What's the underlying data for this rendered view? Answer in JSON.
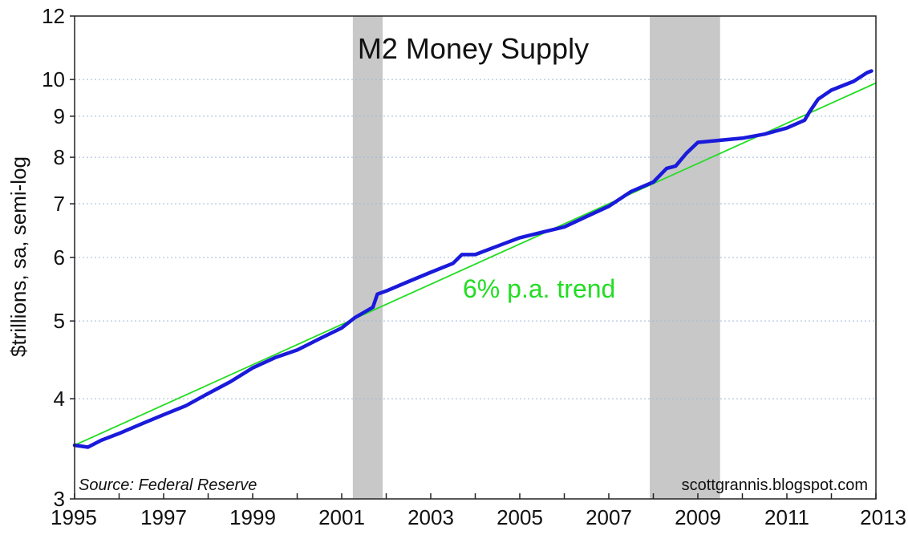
{
  "chart_data": {
    "type": "line",
    "title": "M2 Money Supply",
    "ylabel": "$trillions, sa, semi-log",
    "y_scale": "log",
    "ylim": [
      3,
      12
    ],
    "xlim": [
      1995,
      2013
    ],
    "y_ticks": [
      3,
      4,
      5,
      6,
      7,
      8,
      9,
      10,
      12
    ],
    "y_tick_labels": [
      "3",
      "4",
      "5",
      "6",
      "7",
      "8",
      "9",
      "10",
      "12"
    ],
    "x_ticks": [
      1995,
      1997,
      1999,
      2001,
      2003,
      2005,
      2007,
      2009,
      2011,
      2013
    ],
    "x_tick_labels": [
      "1995",
      "1997",
      "1999",
      "2001",
      "2003",
      "2005",
      "2007",
      "2009",
      "2011",
      "2013"
    ],
    "grid": "horizontal, dotted",
    "recessions": [
      {
        "start": 2001.25,
        "end": 2001.92
      },
      {
        "start": 2007.92,
        "end": 2009.5
      }
    ],
    "series": [
      {
        "color": "#1a1adb",
        "x": [
          1995.0,
          1995.3,
          1995.6,
          1996.0,
          1996.5,
          1997.0,
          1997.5,
          1998.0,
          1998.5,
          1999.0,
          1999.5,
          2000.0,
          2000.5,
          2001.0,
          2001.3,
          2001.7,
          2001.8,
          2002.0,
          2002.5,
          2003.0,
          2003.5,
          2003.7,
          2004.0,
          2004.5,
          2005.0,
          2005.5,
          2006.0,
          2006.5,
          2007.0,
          2007.5,
          2008.0,
          2008.3,
          2008.5,
          2008.75,
          2009.0,
          2009.5,
          2010.0,
          2010.5,
          2011.0,
          2011.4,
          2011.5,
          2011.7,
          2012.0,
          2012.5,
          2012.8,
          2012.9
        ],
        "y": [
          3.5,
          3.48,
          3.55,
          3.62,
          3.72,
          3.82,
          3.92,
          4.06,
          4.2,
          4.37,
          4.5,
          4.6,
          4.75,
          4.9,
          5.05,
          5.2,
          5.4,
          5.45,
          5.6,
          5.75,
          5.9,
          6.05,
          6.05,
          6.2,
          6.35,
          6.45,
          6.55,
          6.75,
          6.95,
          7.25,
          7.45,
          7.75,
          7.8,
          8.1,
          8.35,
          8.4,
          8.45,
          8.55,
          8.7,
          8.9,
          9.1,
          9.45,
          9.7,
          9.95,
          10.2,
          10.25
        ]
      },
      {
        "name": "6% p.a. trend",
        "color": "#22dd22",
        "x": [
          1995.0,
          2013.0
        ],
        "y": [
          3.5,
          9.9
        ]
      }
    ],
    "annotations": {
      "trend_label": "6% p.a. trend",
      "source": "Source: Federal Reserve",
      "credit": "scottgrannis.blogspot.com"
    }
  }
}
